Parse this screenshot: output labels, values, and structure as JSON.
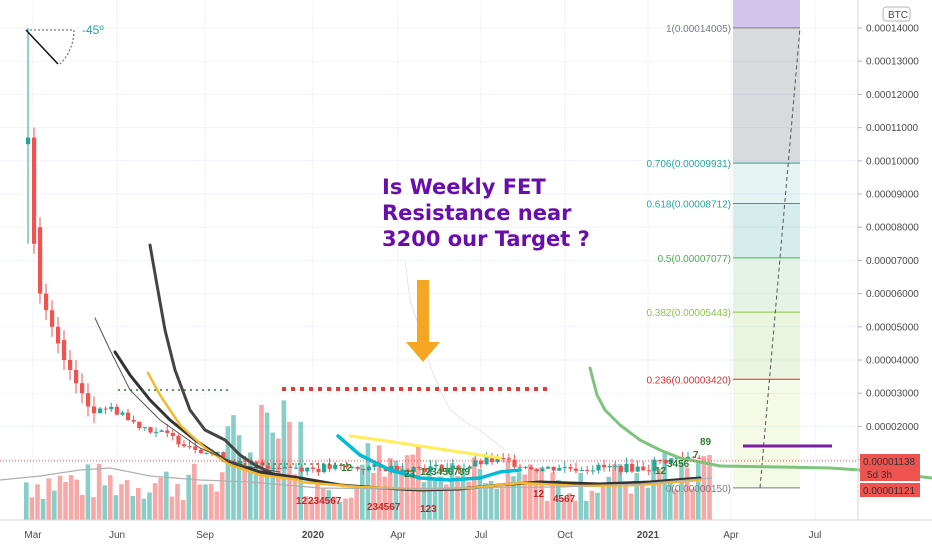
{
  "chart_data": {
    "type": "candlestick",
    "symbol_unit": "BTC",
    "title": "Is Weekly FET Resistance near 3200 our Target ?",
    "angle_label": "-45º",
    "x_ticks": [
      "Mar",
      "Jun",
      "Sep",
      "2020",
      "Apr",
      "Jul",
      "Oct",
      "2021",
      "Apr",
      "Jul"
    ],
    "y_ticks": [
      "0.00014000",
      "0.00013000",
      "0.00012000",
      "0.00011000",
      "0.00010000",
      "0.00009000",
      "0.00008000",
      "0.00007000",
      "0.00006000",
      "0.00005000",
      "0.00004000",
      "0.00003000",
      "0.00002000",
      "0.00001000"
    ],
    "y_range": [
      5e-06,
      0.000145
    ],
    "price_labels": {
      "last": "0.00001138",
      "countdown": "5d 3h",
      "other": "0.00001121"
    },
    "fib_levels": [
      {
        "ratio": "1",
        "label": "1(0.00014005)",
        "value": 0.00014005,
        "color": "#787b86"
      },
      {
        "ratio": "0.706",
        "label": "0.706(0.00009931)",
        "value": 9.931e-05,
        "color": "#26a69a"
      },
      {
        "ratio": "0.618",
        "label": "0.618(0.00008712)",
        "value": 8.712e-05,
        "color": "#26a69a"
      },
      {
        "ratio": "0.5",
        "label": "0.5(0.00007077)",
        "value": 7.077e-05,
        "color": "#4caf50"
      },
      {
        "ratio": "0.382",
        "label": "0.382(0.00005443)",
        "value": 5.443e-05,
        "color": "#8bc34a"
      },
      {
        "ratio": "0.236",
        "label": "0.236(0.00003420)",
        "value": 3.42e-05,
        "color": "#d32f2f"
      },
      {
        "ratio": "0",
        "label": "0(0.00000150)",
        "value": 1.5e-06,
        "color": "#787b86"
      }
    ],
    "td_labels": [
      "12",
      "23",
      "123456789",
      "12",
      "234567",
      "123",
      "4567",
      "8",
      "123456789",
      "12",
      "3456",
      "7",
      "89"
    ],
    "colors": {
      "up": "#26a69a",
      "down": "#ef5350",
      "annotation": "#6a0dad",
      "arrow": "#f5a623",
      "resistance": "#e53935"
    }
  }
}
